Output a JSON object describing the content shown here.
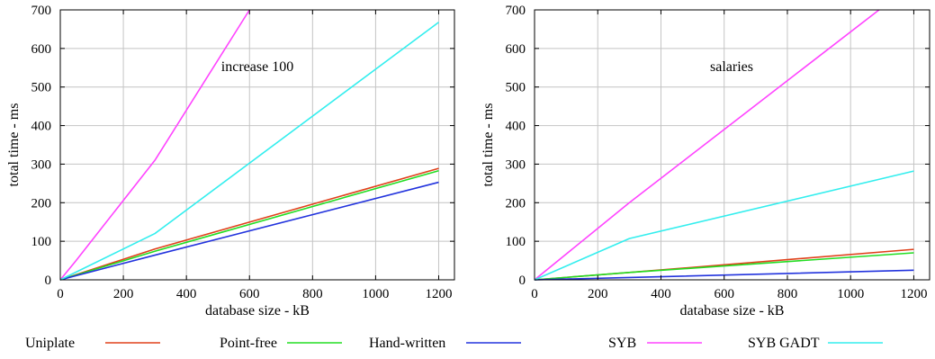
{
  "chart_data": [
    {
      "type": "line",
      "annotation": "increase 100",
      "xlabel": "database size - kB",
      "ylabel": "total time - ms",
      "xlim": [
        0,
        1250
      ],
      "ylim": [
        0,
        700
      ],
      "xticks": [
        0,
        200,
        400,
        600,
        800,
        1000,
        1200
      ],
      "yticks": [
        0,
        100,
        200,
        300,
        400,
        500,
        600,
        700
      ],
      "grid": true,
      "series": [
        {
          "name": "Uniplate",
          "color": "#e0401a",
          "x": [
            0,
            300,
            1200
          ],
          "y": [
            0,
            80,
            289
          ]
        },
        {
          "name": "Point-free",
          "color": "#22dd22",
          "x": [
            0,
            300,
            1200
          ],
          "y": [
            0,
            74,
            283
          ]
        },
        {
          "name": "Hand-written",
          "color": "#2233dd",
          "x": [
            0,
            300,
            1200
          ],
          "y": [
            0,
            64,
            253
          ]
        },
        {
          "name": "SYB",
          "color": "#ff44ff",
          "x": [
            0,
            50,
            300,
            600
          ],
          "y": [
            0,
            50,
            310,
            700
          ]
        },
        {
          "name": "SYB GADT",
          "color": "#33eeee",
          "x": [
            0,
            300,
            1200
          ],
          "y": [
            0,
            120,
            668
          ]
        }
      ]
    },
    {
      "type": "line",
      "annotation": "salaries",
      "xlabel": "database size - kB",
      "ylabel": "total time - ms",
      "xlim": [
        0,
        1250
      ],
      "ylim": [
        0,
        700
      ],
      "xticks": [
        0,
        200,
        400,
        600,
        800,
        1000,
        1200
      ],
      "yticks": [
        0,
        100,
        200,
        300,
        400,
        500,
        600,
        700
      ],
      "grid": true,
      "series": [
        {
          "name": "Uniplate",
          "color": "#e0401a",
          "x": [
            0,
            300,
            1200
          ],
          "y": [
            0,
            19,
            79
          ]
        },
        {
          "name": "Point-free",
          "color": "#22dd22",
          "x": [
            0,
            300,
            1200
          ],
          "y": [
            0,
            19,
            70
          ]
        },
        {
          "name": "Hand-written",
          "color": "#2233dd",
          "x": [
            0,
            300,
            1200
          ],
          "y": [
            0,
            6,
            25
          ]
        },
        {
          "name": "SYB",
          "color": "#ff44ff",
          "x": [
            0,
            300,
            1090
          ],
          "y": [
            0,
            200,
            700
          ]
        },
        {
          "name": "SYB GADT",
          "color": "#33eeee",
          "x": [
            0,
            300,
            1200
          ],
          "y": [
            0,
            107,
            282
          ]
        }
      ]
    }
  ],
  "legend": {
    "placement": "bottom",
    "items": [
      {
        "label": "Uniplate",
        "color": "#e0401a"
      },
      {
        "label": "Point-free",
        "color": "#22dd22"
      },
      {
        "label": "Hand-written",
        "color": "#2233dd"
      },
      {
        "label": "SYB",
        "color": "#ff44ff"
      },
      {
        "label": "SYB GADT",
        "color": "#33eeee"
      }
    ]
  }
}
